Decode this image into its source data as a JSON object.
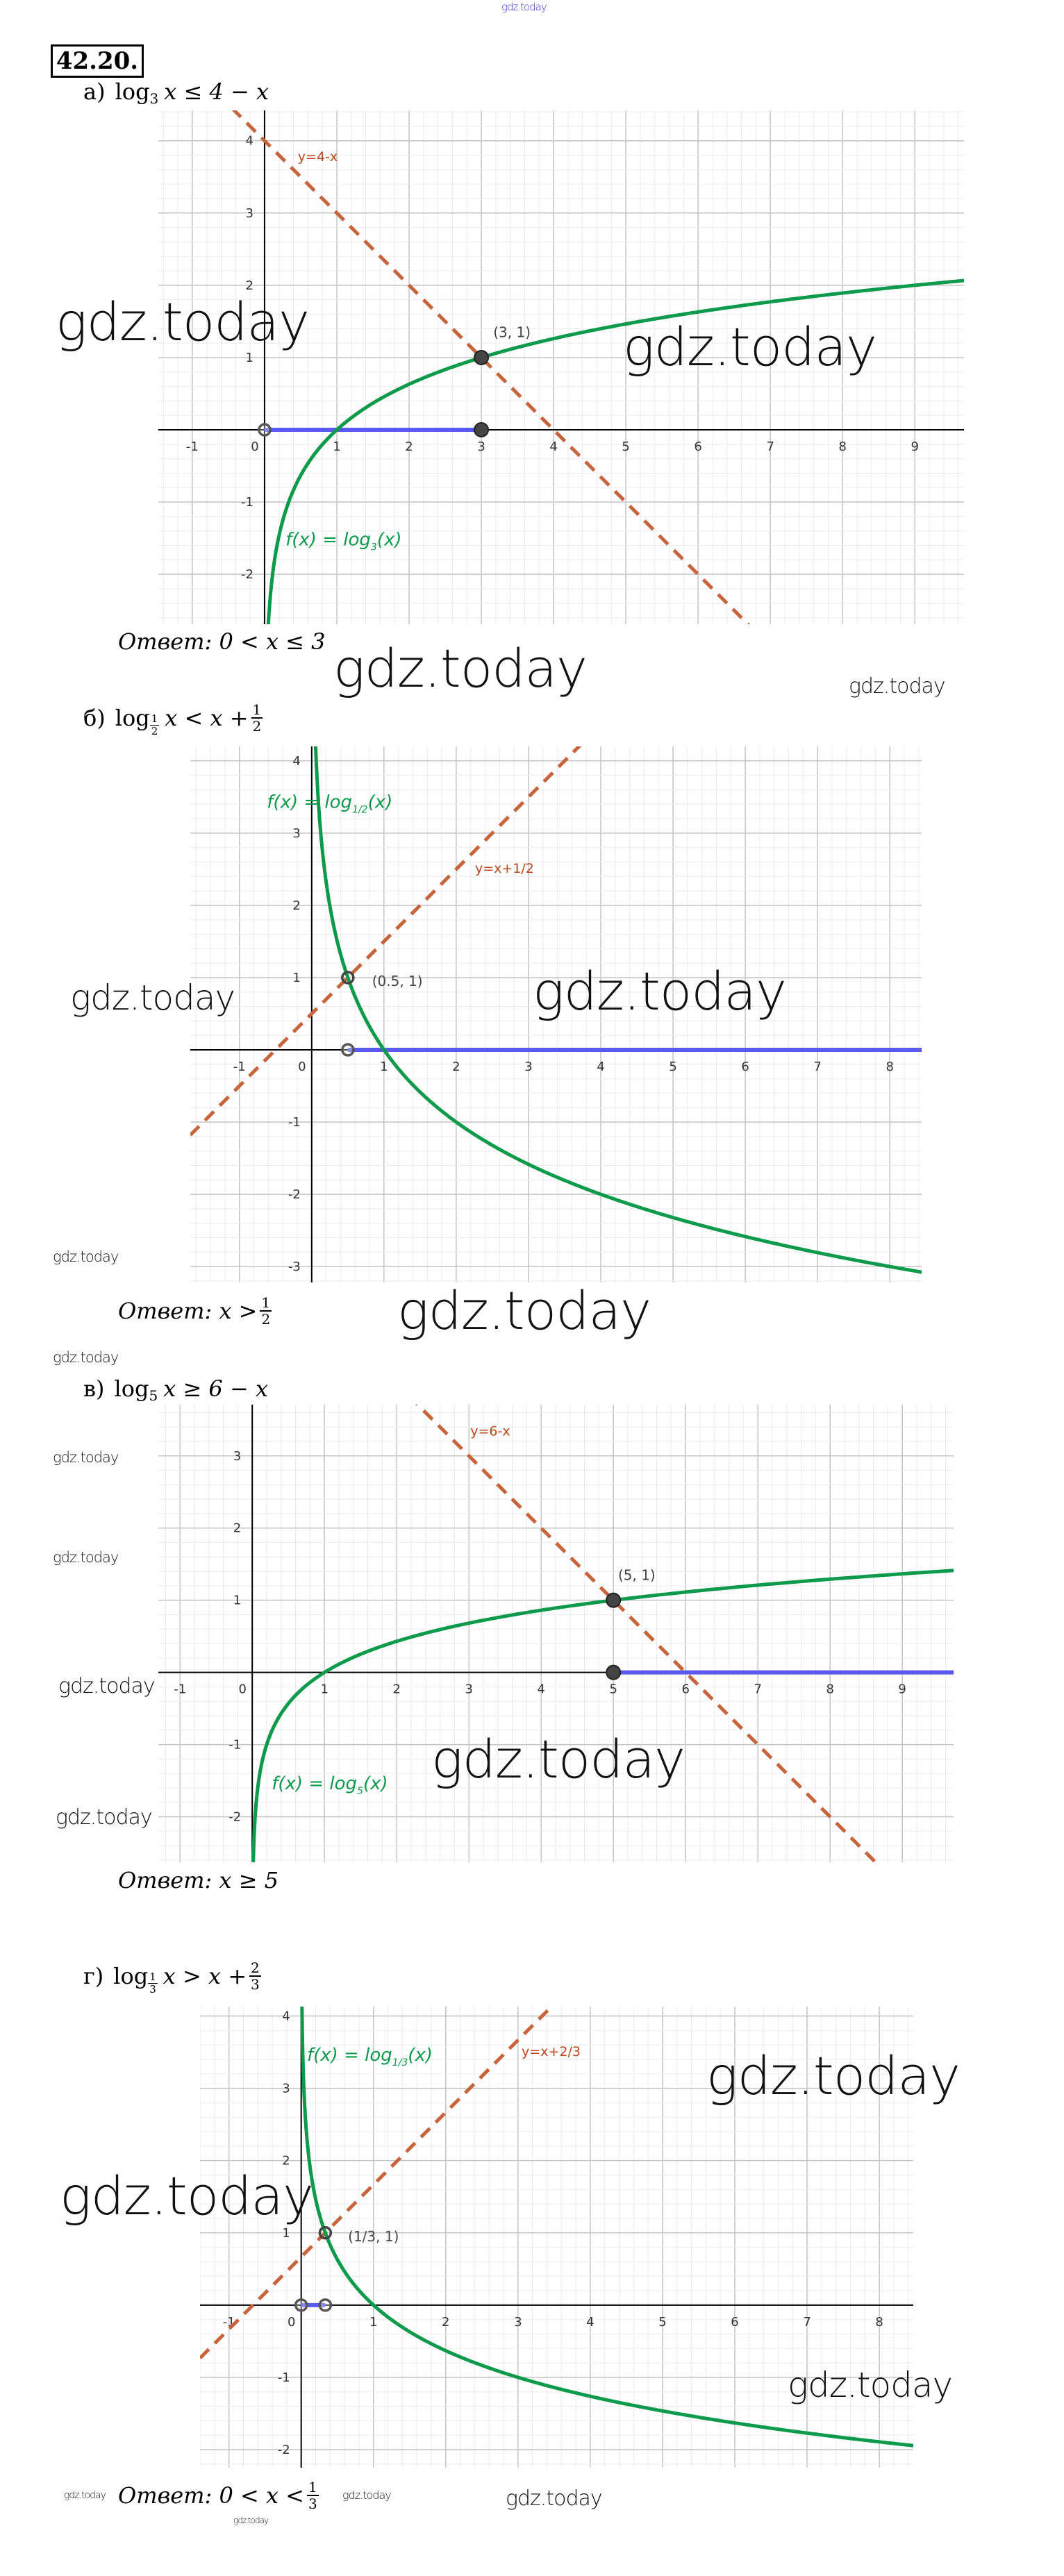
{
  "watermark": "gdz.today",
  "exercise_number": "42.20.",
  "answer_word": "Ответ:",
  "colors": {
    "curve": "#0d9a4a",
    "line": "#c8643b",
    "solution": "#5a5af0",
    "point": "#444444",
    "grid_major": "#c4c4c4",
    "grid_minor": "#ebebeb",
    "watermark_top": "#3a3adf"
  },
  "problems": [
    {
      "label": "а)",
      "log": "log",
      "base": "3",
      "rest": "x ≤ 4 − x",
      "answer": "0 < x ≤ 3"
    },
    {
      "label": "б)",
      "log": "log",
      "base_num": "1",
      "base_den": "2",
      "rest": "x < x +",
      "rhs_num": "1",
      "rhs_den": "2",
      "answer": "x >",
      "answer_num": "1",
      "answer_den": "2"
    },
    {
      "label": "в)",
      "log": "log",
      "base": "5",
      "rest": "x ≥ 6 − x",
      "answer": "x ≥ 5"
    },
    {
      "label": "г)",
      "log": "log",
      "base_num": "1",
      "base_den": "3",
      "rest": "x > x +",
      "rhs_num": "2",
      "rhs_den": "3",
      "answer": "0 < x <",
      "answer_num": "1",
      "answer_den": "3"
    }
  ],
  "chart_data": [
    {
      "type": "line",
      "title": "а) log3 x ≤ 4 − x",
      "xlim": [
        -1.47,
        9.68
      ],
      "ylim": [
        -2.69,
        4.42
      ],
      "grid": true,
      "xticks": [
        -1,
        0,
        1,
        2,
        3,
        4,
        5,
        6,
        7,
        8,
        9
      ],
      "yticks": [
        -2,
        -1,
        1,
        2,
        3,
        4
      ],
      "function": {
        "base": 3,
        "label_prefix": "f(x) = log",
        "label_base": "3",
        "label_suffix": "(x)"
      },
      "line": {
        "slope": -1,
        "intercept": 4,
        "label": "y=4-x",
        "style": "dashed"
      },
      "points": [
        {
          "x": 3,
          "y": 1,
          "label": "(3, 1)",
          "filled": true
        }
      ],
      "solution": {
        "from": 0,
        "to": 3,
        "from_open": true,
        "to_open": false
      }
    },
    {
      "type": "line",
      "title": "б) log1/2 x < x + 1/2",
      "xlim": [
        -1.68,
        8.44
      ],
      "ylim": [
        -3.22,
        4.2
      ],
      "grid": true,
      "xticks": [
        -1,
        0,
        1,
        2,
        3,
        4,
        5,
        6,
        7,
        8
      ],
      "yticks": [
        -3,
        -2,
        -1,
        1,
        2,
        3,
        4
      ],
      "function": {
        "base": 0.5,
        "label_prefix": "f(x) = log",
        "label_base": "1/2",
        "label_suffix": "(x)"
      },
      "line": {
        "slope": 1,
        "intercept": 0.5,
        "label": "y=x+1/2",
        "style": "dashed"
      },
      "points": [
        {
          "x": 0.5,
          "y": 1,
          "label": "(0.5, 1)",
          "filled": false
        }
      ],
      "solution": {
        "from": 0.5,
        "to": null,
        "from_open": true,
        "to_open": true
      }
    },
    {
      "type": "line",
      "title": "в) log5 x ≥ 6 − x",
      "xlim": [
        -1.3,
        9.71
      ],
      "ylim": [
        -2.63,
        3.71
      ],
      "grid": true,
      "xticks": [
        -1,
        0,
        1,
        2,
        3,
        4,
        5,
        6,
        7,
        8,
        9
      ],
      "yticks": [
        -2,
        -1,
        1,
        2,
        3
      ],
      "function": {
        "base": 5,
        "label_prefix": "f(x) = log",
        "label_base": "5",
        "label_suffix": "(x)"
      },
      "line": {
        "slope": -1,
        "intercept": 6,
        "label": "y=6-x",
        "style": "dashed"
      },
      "points": [
        {
          "x": 5,
          "y": 1,
          "label": "(5, 1)",
          "filled": true
        }
      ],
      "solution": {
        "from": 5,
        "to": null,
        "from_open": false,
        "to_open": true
      }
    },
    {
      "type": "line",
      "title": "г) log1/3 x > x + 2/3",
      "xlim": [
        -1.4,
        8.47
      ],
      "ylim": [
        -2.25,
        4.13
      ],
      "grid": true,
      "xticks": [
        -1,
        0,
        1,
        2,
        3,
        4,
        5,
        6,
        7,
        8
      ],
      "yticks": [
        -2,
        -1,
        1,
        2,
        3,
        4
      ],
      "function": {
        "base": 0.3333333,
        "label_prefix": "f(x) = log",
        "label_base": "1/3",
        "label_suffix": "(x)"
      },
      "line": {
        "slope": 1,
        "intercept": 0.6666667,
        "label": "y=x+2/3",
        "style": "dashed"
      },
      "points": [
        {
          "x": 0.3333333,
          "y": 1,
          "label": "(1/3, 1)",
          "filled": false
        }
      ],
      "solution": {
        "from": 0,
        "to": 0.3333333,
        "from_open": true,
        "to_open": true
      }
    }
  ]
}
